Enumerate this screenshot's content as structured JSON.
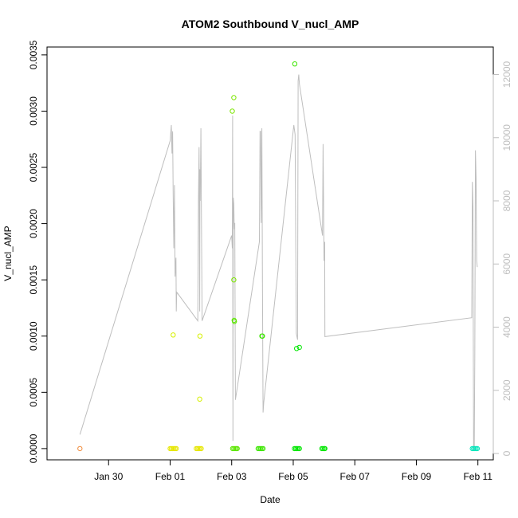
{
  "chart_data": {
    "type": "scatter",
    "title": "ATOM2 Southbound V_nucl_AMP",
    "xlabel": "Date",
    "ylabel": "V_nucl_AMP",
    "x_ticks": [
      "Jan 30",
      "Feb 01",
      "Feb 03",
      "Feb 05",
      "Feb 07",
      "Feb 09",
      "Feb 11"
    ],
    "x_tick_positions": [
      1,
      3,
      5,
      7,
      9,
      11,
      13
    ],
    "xlim": [
      -1.0,
      13.5
    ],
    "ylim": [
      -0.0001,
      0.00357
    ],
    "y_ticks": [
      0.0,
      0.0005,
      0.001,
      0.0015,
      0.002,
      0.0025,
      0.003,
      0.0035
    ],
    "y_tick_labels": [
      "0.0000",
      "0.0005",
      "0.0010",
      "0.0015",
      "0.0020",
      "0.0025",
      "0.0030",
      "0.0035"
    ],
    "y2lim": [
      -200,
      12870
    ],
    "y2_ticks": [
      0,
      2000,
      4000,
      6000,
      8000,
      10000,
      12000
    ],
    "y2_tick_labels": [
      "0",
      "2000",
      "4000",
      "6000",
      "8000",
      "10000",
      "12000"
    ],
    "colors": {
      "frame": "#000000",
      "line": "#bebebe",
      "right_axis": "#bebebe"
    },
    "points": [
      {
        "x": 0.07,
        "y": 0.0,
        "color": "#f08c3c"
      },
      {
        "x": 3.0,
        "y": 0.0,
        "color": "#e6e600"
      },
      {
        "x": 3.04,
        "y": 0.0,
        "color": "#e6e600"
      },
      {
        "x": 3.08,
        "y": 0.0,
        "color": "#e6e600"
      },
      {
        "x": 3.12,
        "y": 0.0,
        "color": "#e6e600"
      },
      {
        "x": 3.16,
        "y": 0.0,
        "color": "#e6e600"
      },
      {
        "x": 3.2,
        "y": 0.0,
        "color": "#e6e600"
      },
      {
        "x": 3.1,
        "y": 0.00101,
        "color": "#d6f000"
      },
      {
        "x": 3.85,
        "y": 0.0,
        "color": "#e6e600"
      },
      {
        "x": 3.89,
        "y": 0.0,
        "color": "#e6e600"
      },
      {
        "x": 3.93,
        "y": 0.0,
        "color": "#e6e600"
      },
      {
        "x": 3.97,
        "y": 0.0,
        "color": "#e6e600"
      },
      {
        "x": 4.01,
        "y": 0.0,
        "color": "#e6e600"
      },
      {
        "x": 3.97,
        "y": 0.001,
        "color": "#d6f000"
      },
      {
        "x": 3.96,
        "y": 0.00044,
        "color": "#d6f000"
      },
      {
        "x": 5.03,
        "y": 0.0,
        "color": "#5ce600"
      },
      {
        "x": 5.07,
        "y": 0.0,
        "color": "#5ce600"
      },
      {
        "x": 5.11,
        "y": 0.0,
        "color": "#5ce600"
      },
      {
        "x": 5.15,
        "y": 0.0,
        "color": "#5ce600"
      },
      {
        "x": 5.18,
        "y": 0.0,
        "color": "#5ce600"
      },
      {
        "x": 5.07,
        "y": 0.00312,
        "color": "#7ce600"
      },
      {
        "x": 5.02,
        "y": 0.003,
        "color": "#7ce600"
      },
      {
        "x": 5.07,
        "y": 0.0015,
        "color": "#7ce600"
      },
      {
        "x": 5.08,
        "y": 0.00114,
        "color": "#5ce600"
      },
      {
        "x": 5.09,
        "y": 0.00113,
        "color": "#5ce600"
      },
      {
        "x": 5.86,
        "y": 0.0,
        "color": "#3ce600"
      },
      {
        "x": 5.9,
        "y": 0.0,
        "color": "#3ce600"
      },
      {
        "x": 5.94,
        "y": 0.0,
        "color": "#3ce600"
      },
      {
        "x": 5.98,
        "y": 0.0,
        "color": "#3ce600"
      },
      {
        "x": 6.02,
        "y": 0.0,
        "color": "#3ce600"
      },
      {
        "x": 5.98,
        "y": 0.001,
        "color": "#3ce600"
      },
      {
        "x": 6.0,
        "y": 0.001,
        "color": "#3ce600"
      },
      {
        "x": 7.04,
        "y": 0.0,
        "color": "#00e600"
      },
      {
        "x": 7.08,
        "y": 0.0,
        "color": "#00e600"
      },
      {
        "x": 7.12,
        "y": 0.0,
        "color": "#00e600"
      },
      {
        "x": 7.16,
        "y": 0.0,
        "color": "#00e600"
      },
      {
        "x": 7.2,
        "y": 0.0,
        "color": "#00e600"
      },
      {
        "x": 7.05,
        "y": 0.00342,
        "color": "#3ce600"
      },
      {
        "x": 7.11,
        "y": 0.00089,
        "color": "#00e600"
      },
      {
        "x": 7.2,
        "y": 0.0009,
        "color": "#00e600"
      },
      {
        "x": 7.93,
        "y": 0.0,
        "color": "#00e600"
      },
      {
        "x": 7.97,
        "y": 0.0,
        "color": "#00e600"
      },
      {
        "x": 8.01,
        "y": 0.0,
        "color": "#00e600"
      },
      {
        "x": 8.03,
        "y": 0.0,
        "color": "#00e600"
      },
      {
        "x": 12.82,
        "y": 0.0,
        "color": "#00e6bb"
      },
      {
        "x": 12.86,
        "y": 0.0,
        "color": "#00e6bb"
      },
      {
        "x": 12.9,
        "y": 0.0,
        "color": "#00e6bb"
      },
      {
        "x": 12.94,
        "y": 0.0,
        "color": "#00e6bb"
      },
      {
        "x": 12.98,
        "y": 0.0,
        "color": "#00e6bb"
      }
    ],
    "secondary_line": {
      "color": "#bebebe",
      "x": [
        0.07,
        3.0,
        3.04,
        3.06,
        3.08,
        3.1,
        3.12,
        3.14,
        3.16,
        3.19,
        3.2,
        3.21,
        3.22,
        3.9,
        3.92,
        3.94,
        3.96,
        3.97,
        3.98,
        4.0,
        4.02,
        4.04,
        5.0,
        5.02,
        5.03,
        5.04,
        5.05,
        5.07,
        5.08,
        5.09,
        5.1,
        5.12,
        5.9,
        5.92,
        5.94,
        5.96,
        5.98,
        6.0,
        6.02,
        6.04,
        7.02,
        7.06,
        7.1,
        7.12,
        7.14,
        7.16,
        7.18,
        7.2,
        7.95,
        7.97,
        8.0,
        8.02,
        8.03,
        12.8,
        12.82,
        12.84,
        12.86,
        12.88,
        12.9,
        12.92,
        12.94,
        12.96,
        12.98
      ],
      "y": [
        600,
        9900,
        10400,
        9500,
        10200,
        8200,
        6500,
        8500,
        5600,
        6200,
        4500,
        5000,
        5100,
        4200,
        8000,
        9700,
        4500,
        9000,
        8000,
        10300,
        7000,
        4200,
        6900,
        6500,
        10700,
        400,
        8100,
        7900,
        7300,
        7100,
        7300,
        1700,
        6700,
        10200,
        10200,
        7300,
        10300,
        5500,
        1300,
        1600,
        10400,
        10100,
        3800,
        3700,
        3600,
        11800,
        12000,
        11700,
        6900,
        9800,
        6100,
        6700,
        3700,
        4300,
        8600,
        7800,
        100,
        100,
        3000,
        9600,
        8700,
        6100,
        5900
      ]
    }
  }
}
